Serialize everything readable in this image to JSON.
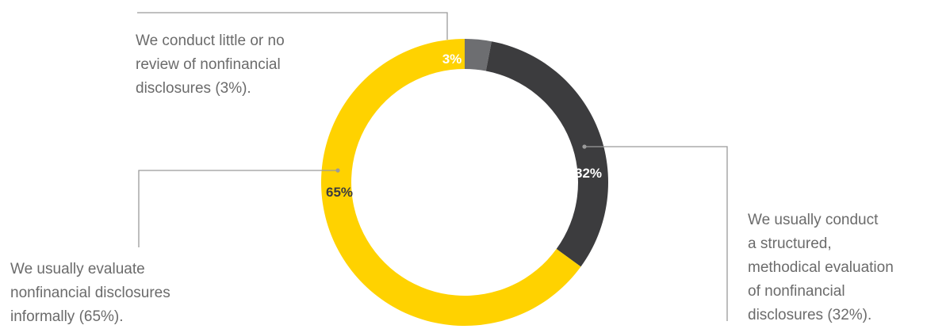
{
  "chart_data": {
    "type": "pie",
    "style": "donut",
    "slices": [
      {
        "value": 3,
        "data_label": "3%",
        "color": "#6d6e71",
        "label_color": "#ffffff",
        "annotation": "We conduct little or no\nreview of nonfinancial\ndisclosures (3%)."
      },
      {
        "value": 32,
        "data_label": "32%",
        "color": "#3c3c3e",
        "label_color": "#ffffff",
        "annotation": "We usually conduct\na structured,\nmethodical evaluation\nof nonfinancial\ndisclosures (32%)."
      },
      {
        "value": 65,
        "data_label": "65%",
        "color": "#ffd200",
        "label_color": "#3c3c3e",
        "annotation": "We usually evaluate\nnonfinancial disclosures\ninformally (65%)."
      }
    ],
    "start": "12 o'clock",
    "direction": "clockwise",
    "legend": "none"
  },
  "colors": {
    "callout_text": "#6b6b6b",
    "leader_line": "#9a9a9a"
  }
}
